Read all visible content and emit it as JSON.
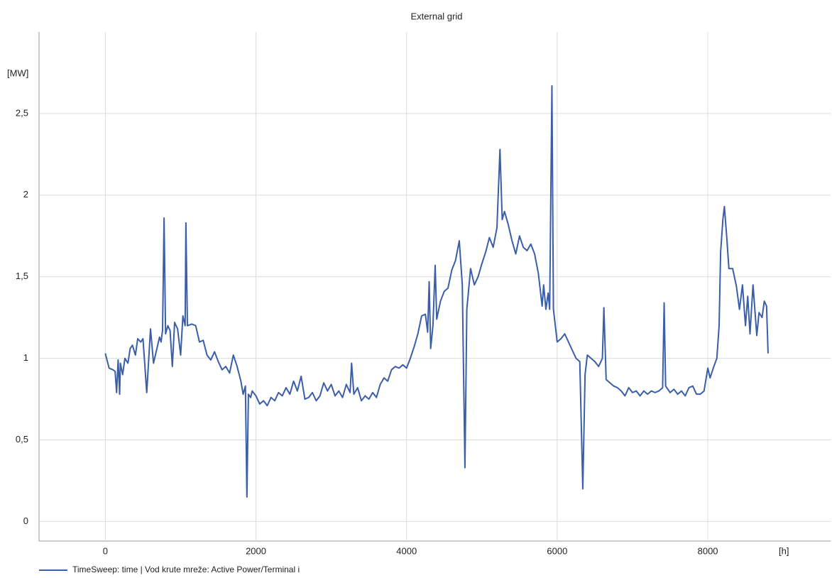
{
  "chart_data": {
    "type": "line",
    "title": "External grid",
    "y_label": "[MW]",
    "x_label": "[h]",
    "xlim": [
      -880,
      9630
    ],
    "ylim": [
      -0.12,
      3.0
    ],
    "xticks": [
      0,
      2000,
      4000,
      6000,
      8000
    ],
    "yticks": [
      0,
      {
        "value": 0.5,
        "label": "0,5"
      },
      1,
      {
        "value": 1.5,
        "label": "1,5"
      },
      2,
      {
        "value": 2.5,
        "label": "2,5"
      }
    ],
    "grid": true,
    "x": [
      0,
      50,
      100,
      130,
      150,
      170,
      190,
      200,
      230,
      260,
      300,
      330,
      360,
      400,
      430,
      470,
      500,
      550,
      600,
      640,
      680,
      720,
      740,
      760,
      780,
      800,
      830,
      860,
      890,
      920,
      960,
      1000,
      1030,
      1060,
      1070,
      1090,
      1150,
      1200,
      1250,
      1300,
      1350,
      1400,
      1450,
      1500,
      1550,
      1600,
      1650,
      1700,
      1750,
      1800,
      1830,
      1860,
      1880,
      1900,
      1930,
      1950,
      2000,
      2050,
      2100,
      2150,
      2200,
      2250,
      2300,
      2350,
      2400,
      2450,
      2500,
      2550,
      2600,
      2650,
      2700,
      2750,
      2800,
      2850,
      2900,
      2950,
      3000,
      3050,
      3100,
      3150,
      3200,
      3250,
      3270,
      3300,
      3350,
      3400,
      3450,
      3500,
      3550,
      3600,
      3650,
      3700,
      3750,
      3800,
      3850,
      3900,
      3950,
      4000,
      4050,
      4100,
      4150,
      4200,
      4250,
      4280,
      4300,
      4320,
      4350,
      4380,
      4400,
      4450,
      4500,
      4550,
      4600,
      4650,
      4700,
      4740,
      4775,
      4800,
      4850,
      4900,
      4950,
      5000,
      5050,
      5100,
      5150,
      5200,
      5240,
      5270,
      5300,
      5350,
      5400,
      5450,
      5500,
      5550,
      5600,
      5650,
      5700,
      5750,
      5780,
      5800,
      5820,
      5850,
      5880,
      5900,
      5930,
      5950,
      5980,
      6000,
      6050,
      6100,
      6150,
      6200,
      6250,
      6300,
      6340,
      6370,
      6400,
      6450,
      6500,
      6550,
      6600,
      6620,
      6650,
      6700,
      6750,
      6800,
      6850,
      6900,
      6950,
      7000,
      7050,
      7100,
      7150,
      7200,
      7250,
      7300,
      7350,
      7400,
      7420,
      7440,
      7500,
      7550,
      7600,
      7650,
      7700,
      7750,
      7800,
      7850,
      7900,
      7950,
      8000,
      8030,
      8080,
      8120,
      8150,
      8170,
      8200,
      8220,
      8250,
      8280,
      8330,
      8380,
      8420,
      8460,
      8500,
      8530,
      8560,
      8600,
      8650,
      8680,
      8720,
      8750,
      8780,
      8800
    ],
    "series": [
      {
        "name": "TimeSweep: time  |  Vod krute mreže: Active Power/Terminal i",
        "color": "#3b5ea8",
        "values": [
          1.03,
          0.94,
          0.93,
          0.92,
          0.79,
          0.99,
          0.78,
          0.97,
          0.9,
          1.0,
          0.97,
          1.06,
          1.08,
          1.02,
          1.12,
          1.1,
          1.12,
          0.79,
          1.18,
          0.97,
          1.05,
          1.13,
          1.1,
          1.17,
          1.86,
          1.15,
          1.2,
          1.17,
          0.95,
          1.22,
          1.18,
          1.02,
          1.26,
          1.2,
          1.83,
          1.2,
          1.21,
          1.2,
          1.1,
          1.11,
          1.02,
          0.99,
          1.04,
          0.98,
          0.93,
          0.95,
          0.91,
          1.02,
          0.95,
          0.86,
          0.78,
          0.83,
          0.15,
          0.78,
          0.76,
          0.8,
          0.77,
          0.72,
          0.74,
          0.71,
          0.76,
          0.74,
          0.79,
          0.77,
          0.82,
          0.78,
          0.86,
          0.8,
          0.89,
          0.75,
          0.76,
          0.79,
          0.74,
          0.77,
          0.85,
          0.8,
          0.84,
          0.77,
          0.8,
          0.76,
          0.84,
          0.79,
          0.97,
          0.78,
          0.82,
          0.74,
          0.77,
          0.75,
          0.79,
          0.76,
          0.84,
          0.88,
          0.86,
          0.93,
          0.95,
          0.94,
          0.96,
          0.94,
          1.0,
          1.07,
          1.15,
          1.26,
          1.27,
          1.16,
          1.47,
          1.06,
          1.2,
          1.57,
          1.24,
          1.35,
          1.41,
          1.43,
          1.54,
          1.6,
          1.72,
          1.45,
          0.33,
          1.3,
          1.55,
          1.45,
          1.5,
          1.58,
          1.65,
          1.74,
          1.68,
          1.8,
          2.28,
          1.85,
          1.9,
          1.82,
          1.72,
          1.64,
          1.75,
          1.68,
          1.66,
          1.7,
          1.64,
          1.52,
          1.4,
          1.32,
          1.45,
          1.3,
          1.4,
          1.3,
          2.67,
          1.3,
          1.18,
          1.1,
          1.12,
          1.15,
          1.1,
          1.05,
          1.0,
          0.98,
          0.2,
          0.9,
          1.02,
          1.0,
          0.98,
          0.95,
          1.0,
          1.31,
          0.87,
          0.85,
          0.83,
          0.82,
          0.8,
          0.77,
          0.82,
          0.79,
          0.8,
          0.77,
          0.8,
          0.78,
          0.8,
          0.79,
          0.8,
          0.82,
          1.34,
          0.83,
          0.79,
          0.81,
          0.78,
          0.8,
          0.77,
          0.82,
          0.83,
          0.78,
          0.78,
          0.8,
          0.94,
          0.88,
          0.95,
          1.0,
          1.2,
          1.65,
          1.85,
          1.93,
          1.75,
          1.55,
          1.55,
          1.44,
          1.3,
          1.45,
          1.2,
          1.38,
          1.15,
          1.45,
          1.14,
          1.28,
          1.25,
          1.35,
          1.32,
          1.03
        ]
      }
    ]
  }
}
